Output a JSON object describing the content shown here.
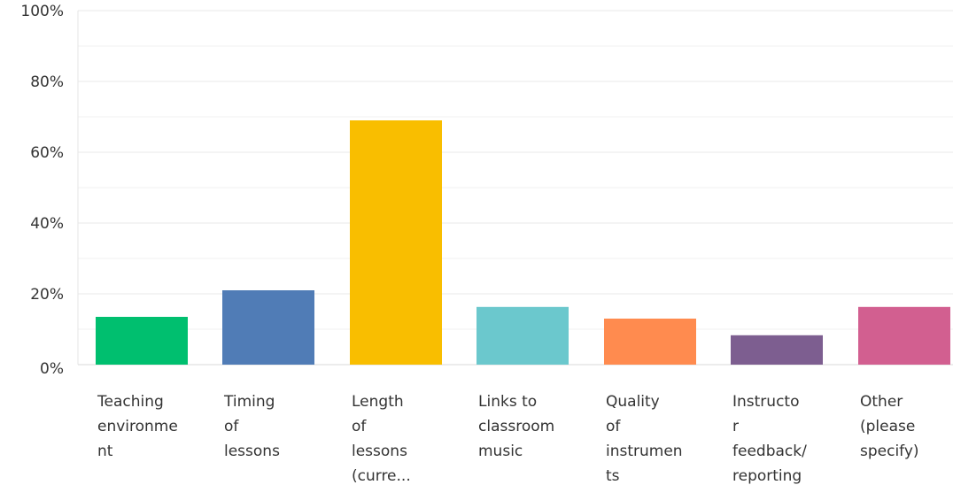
{
  "chart_data": {
    "type": "bar",
    "categories": [
      [
        "Teaching",
        "environme",
        "nt"
      ],
      [
        "Timing",
        "of",
        "lessons"
      ],
      [
        "Length",
        "of",
        "lessons",
        "(curre..."
      ],
      [
        "Links to",
        "classroom",
        "music"
      ],
      [
        "Quality",
        "of",
        "instrumen",
        "ts"
      ],
      [
        "Instructo",
        "r",
        "feedback/",
        "reporting"
      ],
      [
        "Other",
        "(please",
        "specify)"
      ]
    ],
    "values": [
      13.5,
      21,
      69,
      16.3,
      13,
      8.3,
      16.3
    ],
    "colors": [
      "#00bf6f",
      "#507cb6",
      "#f9be00",
      "#6bc8cd",
      "#ff8b4f",
      "#7d5e90",
      "#d25f90"
    ],
    "ylim": [
      0,
      100
    ],
    "yticks": [
      0,
      20,
      40,
      60,
      80,
      100
    ],
    "ytick_labels": [
      "0%",
      "20%",
      "40%",
      "60%",
      "80%",
      "100%"
    ],
    "grid": true,
    "title": "",
    "xlabel": "",
    "ylabel": ""
  }
}
